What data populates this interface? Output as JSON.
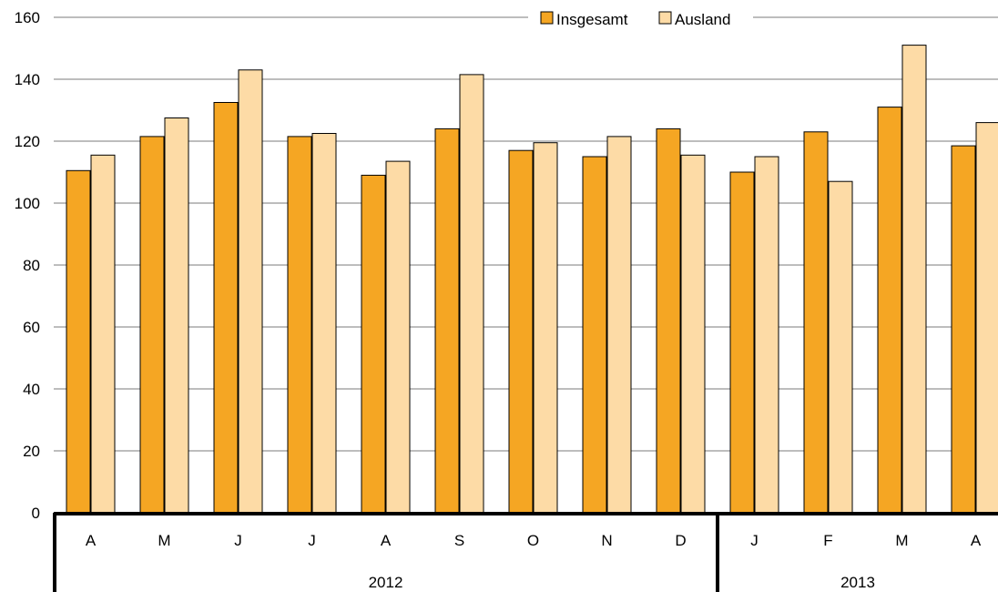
{
  "chart_data": {
    "type": "bar",
    "categories": [
      "A",
      "M",
      "J",
      "J",
      "A",
      "S",
      "O",
      "N",
      "D",
      "J",
      "F",
      "M",
      "A"
    ],
    "groups": [
      {
        "label": "2012",
        "count": 9
      },
      {
        "label": "2013",
        "count": 4
      }
    ],
    "series": [
      {
        "name": "Insgesamt",
        "color": "#F5A623",
        "values": [
          110.5,
          121.5,
          132.5,
          121.5,
          109,
          124,
          117,
          115,
          124,
          110,
          123,
          131,
          118.5
        ]
      },
      {
        "name": "Ausland",
        "color": "#FDDBA6",
        "values": [
          115.5,
          127.5,
          143,
          122.5,
          113.5,
          141.5,
          119.5,
          121.5,
          115.5,
          115,
          107,
          151,
          126
        ]
      }
    ],
    "yticks": [
      "0",
      "20",
      "40",
      "60",
      "80",
      "100",
      "120",
      "140",
      "160"
    ],
    "ylim": [
      0,
      160
    ],
    "grid": true,
    "legend_position": "top-center"
  }
}
